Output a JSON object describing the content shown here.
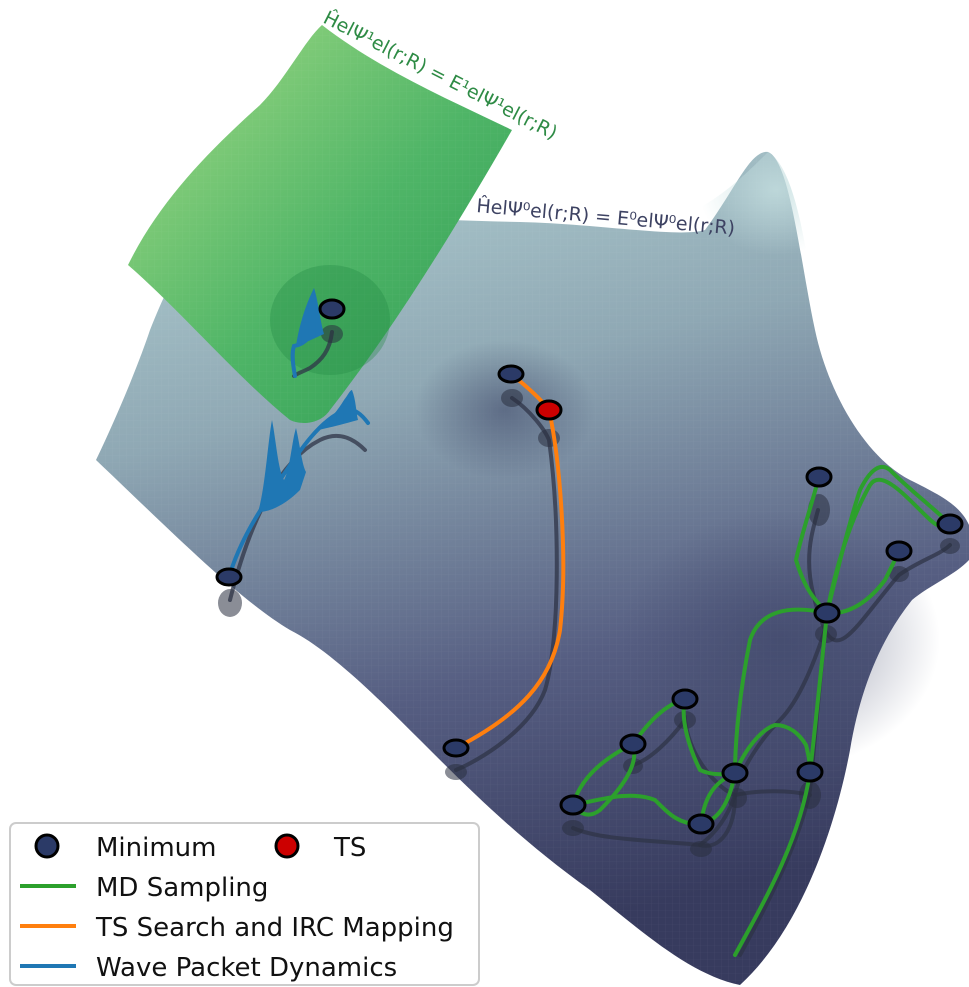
{
  "equations": {
    "excited": "ĤelΨ¹el(r;R) = E¹elΨ¹el(r;R)",
    "ground": "ĤelΨ⁰el(r;R) = E⁰elΨ⁰el(r;R)"
  },
  "legend": {
    "minimum": "Minimum",
    "ts": "TS",
    "md": "MD Sampling",
    "irc": "TS Search and IRC Mapping",
    "wave": "Wave Packet Dynamics"
  },
  "colors": {
    "minimum_fill": "#2b3a67",
    "ts_fill": "#cc0000",
    "md": "#2ca02c",
    "irc": "#ff7f0e",
    "wave": "#1f77b4",
    "ground_surface_top": "#a9c8cc",
    "ground_surface_bottom": "#3d4266",
    "excited_surface": "#56b86a"
  },
  "icons": {
    "minimum_marker": "circle-icon",
    "ts_marker": "circle-icon"
  }
}
